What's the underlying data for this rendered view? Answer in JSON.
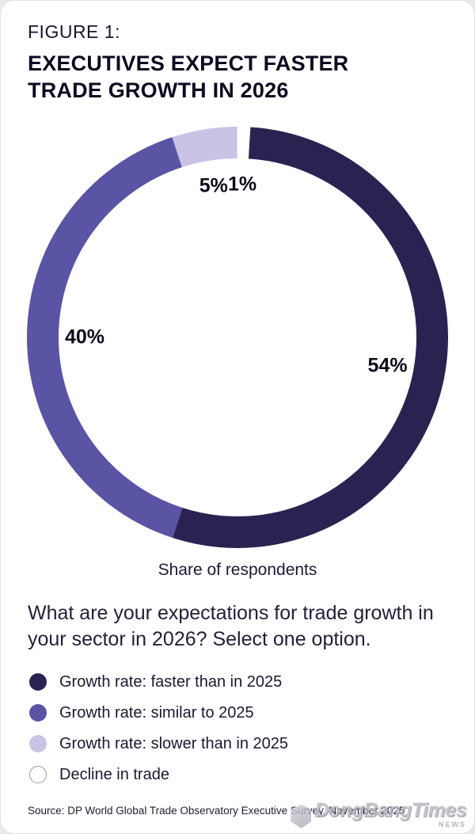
{
  "figure": {
    "label": "FIGURE 1:",
    "title": "EXECUTIVES EXPECT FASTER TRADE GROWTH IN 2026"
  },
  "caption": "Share of respondents",
  "question": "What are your expectations for trade growth in your sector in 2026? Select one option.",
  "source": "Source: DP World Global Trade Observatory Executive Survey, November 2025",
  "watermark": {
    "text": "DongBangTimes",
    "sub": "NEWS"
  },
  "colors": {
    "faster": "#2a2352",
    "similar": "#5a54a5",
    "slower": "#c9c3e6",
    "decline": "#ffffff",
    "decline_border": "#9a99a6",
    "card_background": "#ffffff",
    "page_background": "#e9e8ee"
  },
  "chart_data": {
    "type": "pie",
    "subtype": "donut",
    "title": "EXECUTIVES EXPECT FASTER TRADE GROWTH IN 2026",
    "caption": "Share of respondents",
    "unit": "%",
    "start_offset_percent": 1,
    "legend_position": "bottom",
    "segments": [
      {
        "label": "Growth rate: faster than in 2025",
        "value": 54,
        "color": "#2a2352"
      },
      {
        "label": "Growth rate: similar to 2025",
        "value": 40,
        "color": "#5a54a5"
      },
      {
        "label": "Growth rate: slower than in 2025",
        "value": 5,
        "color": "#c9c3e6"
      },
      {
        "label": "Decline in trade",
        "value": 1,
        "color": "#ffffff",
        "border": "#9a99a6"
      }
    ]
  }
}
